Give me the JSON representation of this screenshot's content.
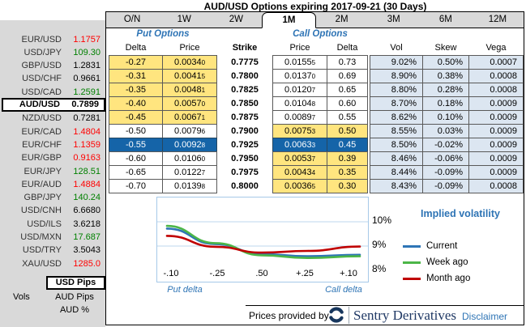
{
  "title": "AUD/USD Options expiring 2017-09-21 (30 Days)",
  "sidebar": {
    "selected_pair": "AUD/USD",
    "pairs": [
      {
        "pair": "EUR/USD",
        "value": "1.1757",
        "color": "red"
      },
      {
        "pair": "USD/JPY",
        "value": "109.30",
        "color": "green"
      },
      {
        "pair": "GBP/USD",
        "value": "1.2831",
        "color": "black"
      },
      {
        "pair": "USD/CHF",
        "value": "0.9661",
        "color": "black"
      },
      {
        "pair": "USD/CAD",
        "value": "1.2591",
        "color": "green"
      },
      {
        "pair": "AUD/USD",
        "value": "0.7899",
        "color": "black"
      },
      {
        "pair": "NZD/USD",
        "value": "0.7281",
        "color": "black"
      },
      {
        "pair": "EUR/CAD",
        "value": "1.4804",
        "color": "red"
      },
      {
        "pair": "EUR/CHF",
        "value": "1.1359",
        "color": "red"
      },
      {
        "pair": "EUR/GBP",
        "value": "0.9163",
        "color": "red"
      },
      {
        "pair": "EUR/JPY",
        "value": "128.51",
        "color": "green"
      },
      {
        "pair": "EUR/AUD",
        "value": "1.4884",
        "color": "red"
      },
      {
        "pair": "GBP/JPY",
        "value": "140.24",
        "color": "green"
      },
      {
        "pair": "USD/CNH",
        "value": "6.6680",
        "color": "black"
      },
      {
        "pair": "USD/ILS",
        "value": "3.6218",
        "color": "black"
      },
      {
        "pair": "USD/MXN",
        "value": "17.687",
        "color": "green"
      },
      {
        "pair": "USD/TRY",
        "value": "3.5043",
        "color": "black"
      },
      {
        "pair": "XAU/USD",
        "value": "1285.0",
        "color": "red"
      }
    ],
    "vols_label": "Vols",
    "vol_modes": [
      "USD Pips",
      "AUD Pips",
      "AUD %"
    ],
    "selected_mode": "USD Pips"
  },
  "tabs": {
    "labels": [
      "O/N",
      "1W",
      "2W",
      "1M",
      "2M",
      "3M",
      "6M",
      "12M"
    ],
    "selected": "1M"
  },
  "table": {
    "put_header": "Put Options",
    "call_header": "Call Options",
    "columns": [
      "Delta",
      "Price",
      "Strike",
      "Price",
      "Delta",
      "Vol",
      "Skew",
      "Vega"
    ],
    "rows": [
      {
        "put_delta": "-0.27",
        "put_price": "0.0034",
        "put_price_sub": "0",
        "strike": "0.7775",
        "call_price": "0.0155",
        "call_price_sub": "5",
        "call_delta": "0.73",
        "vol": "9.02%",
        "skew": "0.50%",
        "vega": "0.0007",
        "put_bg": "yellow",
        "call_bg": "white",
        "selected": false
      },
      {
        "put_delta": "-0.31",
        "put_price": "0.0041",
        "put_price_sub": "5",
        "strike": "0.7800",
        "call_price": "0.0137",
        "call_price_sub": "0",
        "call_delta": "0.69",
        "vol": "8.90%",
        "skew": "0.38%",
        "vega": "0.0008",
        "put_bg": "yellow",
        "call_bg": "white",
        "selected": false
      },
      {
        "put_delta": "-0.35",
        "put_price": "0.0048",
        "put_price_sub": "1",
        "strike": "0.7825",
        "call_price": "0.0120",
        "call_price_sub": "7",
        "call_delta": "0.65",
        "vol": "8.80%",
        "skew": "0.28%",
        "vega": "0.0008",
        "put_bg": "yellow",
        "call_bg": "white",
        "selected": false
      },
      {
        "put_delta": "-0.40",
        "put_price": "0.0057",
        "put_price_sub": "0",
        "strike": "0.7850",
        "call_price": "0.0104",
        "call_price_sub": "8",
        "call_delta": "0.60",
        "vol": "8.70%",
        "skew": "0.18%",
        "vega": "0.0009",
        "put_bg": "yellow",
        "call_bg": "white",
        "selected": false
      },
      {
        "put_delta": "-0.45",
        "put_price": "0.0067",
        "put_price_sub": "1",
        "strike": "0.7875",
        "call_price": "0.0089",
        "call_price_sub": "7",
        "call_delta": "0.55",
        "vol": "8.62%",
        "skew": "0.10%",
        "vega": "0.0009",
        "put_bg": "yellow",
        "call_bg": "white",
        "selected": false
      },
      {
        "put_delta": "-0.50",
        "put_price": "0.0079",
        "put_price_sub": "6",
        "strike": "0.7900",
        "call_price": "0.0075",
        "call_price_sub": "3",
        "call_delta": "0.50",
        "vol": "8.55%",
        "skew": "0.03%",
        "vega": "0.0009",
        "put_bg": "white",
        "call_bg": "yellow",
        "selected": false
      },
      {
        "put_delta": "-0.55",
        "put_price": "0.0092",
        "put_price_sub": "8",
        "strike": "0.7925",
        "call_price": "0.0063",
        "call_price_sub": "3",
        "call_delta": "0.45",
        "vol": "8.50%",
        "skew": "-0.02%",
        "vega": "0.0009",
        "put_bg": "selected",
        "call_bg": "selected",
        "selected": true
      },
      {
        "put_delta": "-0.60",
        "put_price": "0.0106",
        "put_price_sub": "0",
        "strike": "0.7950",
        "call_price": "0.0053",
        "call_price_sub": "7",
        "call_delta": "0.39",
        "vol": "8.46%",
        "skew": "-0.06%",
        "vega": "0.0009",
        "put_bg": "white",
        "call_bg": "yellow",
        "selected": false
      },
      {
        "put_delta": "-0.65",
        "put_price": "0.0122",
        "put_price_sub": "7",
        "strike": "0.7975",
        "call_price": "0.0043",
        "call_price_sub": "4",
        "call_delta": "0.35",
        "vol": "8.44%",
        "skew": "-0.09%",
        "vega": "0.0009",
        "put_bg": "white",
        "call_bg": "yellow",
        "selected": false
      },
      {
        "put_delta": "-0.70",
        "put_price": "0.0139",
        "put_price_sub": "8",
        "strike": "0.8000",
        "call_price": "0.0036",
        "call_price_sub": "5",
        "call_delta": "0.30",
        "vol": "8.43%",
        "skew": "-0.09%",
        "vega": "0.0008",
        "put_bg": "white",
        "call_bg": "yellow",
        "selected": false
      }
    ]
  },
  "chart_data": {
    "type": "line",
    "x_labels": [
      "-.10",
      "-.25",
      ".50",
      "+.25",
      "+.10"
    ],
    "x_axis_left_label": "Put delta",
    "x_axis_right_label": "Call delta",
    "y_ticks": [
      "10%",
      "9%",
      "8%"
    ],
    "ylim": [
      7.9,
      10.3
    ],
    "grid": true,
    "legend_title": "Implied volatility",
    "legend_position": "right",
    "series": [
      {
        "name": "Current",
        "color": "#2E75B6",
        "values": [
          9.72,
          9.08,
          8.67,
          8.58,
          8.64
        ]
      },
      {
        "name": "Week ago",
        "color": "#4CB648",
        "values": [
          9.83,
          9.12,
          8.62,
          8.51,
          8.58
        ]
      },
      {
        "name": "Month ago",
        "color": "#C00000",
        "values": [
          9.42,
          8.97,
          8.73,
          8.8,
          8.98
        ]
      }
    ]
  },
  "footer": {
    "prices_by": "Prices provided by",
    "brand": "Sentry Derivatives",
    "disclaimer": "Disclaimer",
    "logo_icon": "sentry-swirl-icon"
  },
  "colors": {
    "accent_blue": "#2E74B5",
    "selected_row_blue": "#1564A8",
    "highlight_yellow": "#FFE57F",
    "vol_panel_blue": "#DCE6F1",
    "up_green": "#008000",
    "down_red": "#FF0000"
  }
}
